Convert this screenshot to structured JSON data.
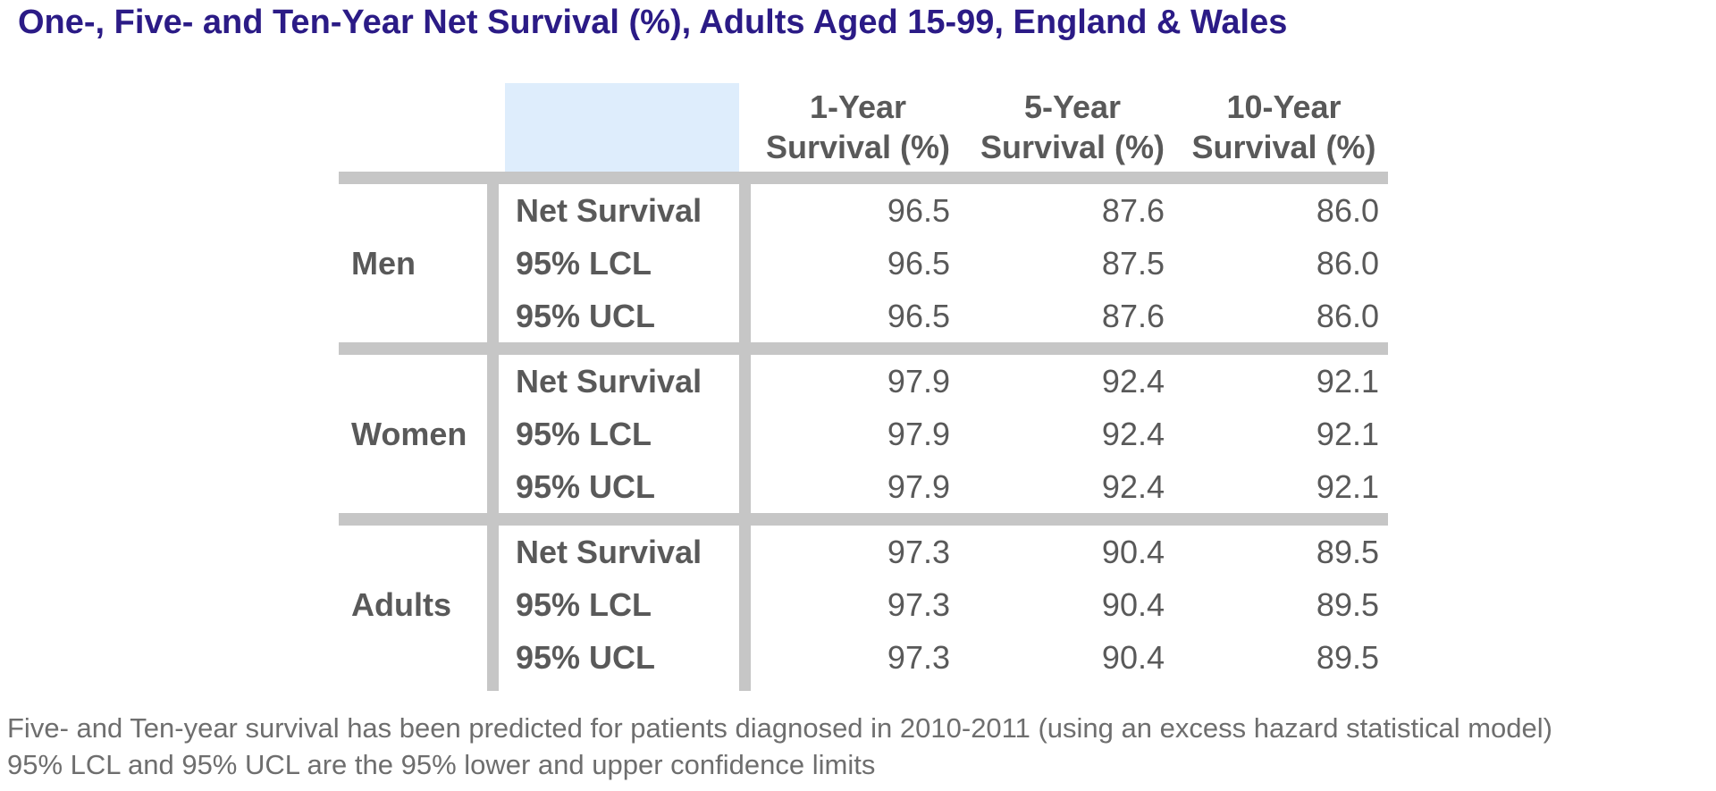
{
  "title": "One-, Five- and Ten-Year Net Survival (%), Adults Aged 15-99, England & Wales",
  "table": {
    "columns": [
      {
        "line1": "1-Year",
        "line2": "Survival (%)"
      },
      {
        "line1": "5-Year",
        "line2": "Survival (%)"
      },
      {
        "line1": "10-Year",
        "line2": "Survival (%)"
      }
    ],
    "groups": [
      {
        "label": "Men",
        "rows": [
          {
            "label": "Net Survival",
            "values": [
              "96.5",
              "87.6",
              "86.0"
            ]
          },
          {
            "label": "95% LCL",
            "values": [
              "96.5",
              "87.5",
              "86.0"
            ]
          },
          {
            "label": "95% UCL",
            "values": [
              "96.5",
              "87.6",
              "86.0"
            ]
          }
        ]
      },
      {
        "label": "Women",
        "rows": [
          {
            "label": "Net Survival",
            "values": [
              "97.9",
              "92.4",
              "92.1"
            ]
          },
          {
            "label": "95% LCL",
            "values": [
              "97.9",
              "92.4",
              "92.1"
            ]
          },
          {
            "label": "95% UCL",
            "values": [
              "97.9",
              "92.4",
              "92.1"
            ]
          }
        ]
      },
      {
        "label": "Adults",
        "rows": [
          {
            "label": "Net Survival",
            "values": [
              "97.3",
              "90.4",
              "89.5"
            ]
          },
          {
            "label": "95% LCL",
            "values": [
              "97.3",
              "90.4",
              "89.5"
            ]
          },
          {
            "label": "95% UCL",
            "values": [
              "97.3",
              "90.4",
              "89.5"
            ]
          }
        ]
      }
    ]
  },
  "footnotes": [
    "Five- and Ten-year survival has been predicted for patients diagnosed in 2010-2011 (using an excess hazard statistical model)",
    "95% LCL and 95% UCL are the 95% lower and upper confidence limits"
  ],
  "colors": {
    "title": "#2B1B86",
    "text": "#595959",
    "footnote": "#6E6E6E",
    "grid_bar": "#C6C6C6",
    "highlight_cell": "#DEEDFC"
  },
  "chart_data": {
    "type": "table",
    "title": "One-, Five- and Ten-Year Net Survival (%), Adults Aged 15-99, England & Wales",
    "column_headers": [
      "1-Year Survival (%)",
      "5-Year Survival (%)",
      "10-Year Survival (%)"
    ],
    "row_groups": [
      {
        "group": "Men",
        "rows": [
          {
            "label": "Net Survival",
            "values": [
              96.5,
              87.6,
              86.0
            ]
          },
          {
            "label": "95% LCL",
            "values": [
              96.5,
              87.5,
              86.0
            ]
          },
          {
            "label": "95% UCL",
            "values": [
              96.5,
              87.6,
              86.0
            ]
          }
        ]
      },
      {
        "group": "Women",
        "rows": [
          {
            "label": "Net Survival",
            "values": [
              97.9,
              92.4,
              92.1
            ]
          },
          {
            "label": "95% LCL",
            "values": [
              97.9,
              92.4,
              92.1
            ]
          },
          {
            "label": "95% UCL",
            "values": [
              97.9,
              92.4,
              92.1
            ]
          }
        ]
      },
      {
        "group": "Adults",
        "rows": [
          {
            "label": "Net Survival",
            "values": [
              97.3,
              90.4,
              89.5
            ]
          },
          {
            "label": "95% LCL",
            "values": [
              97.3,
              90.4,
              89.5
            ]
          },
          {
            "label": "95% UCL",
            "values": [
              97.3,
              90.4,
              89.5
            ]
          }
        ]
      }
    ],
    "footnotes": [
      "Five- and Ten-year survival has been predicted for patients diagnosed in 2010-2011 (using an excess hazard statistical model)",
      "95% LCL and 95% UCL are the 95% lower and upper confidence limits"
    ]
  }
}
